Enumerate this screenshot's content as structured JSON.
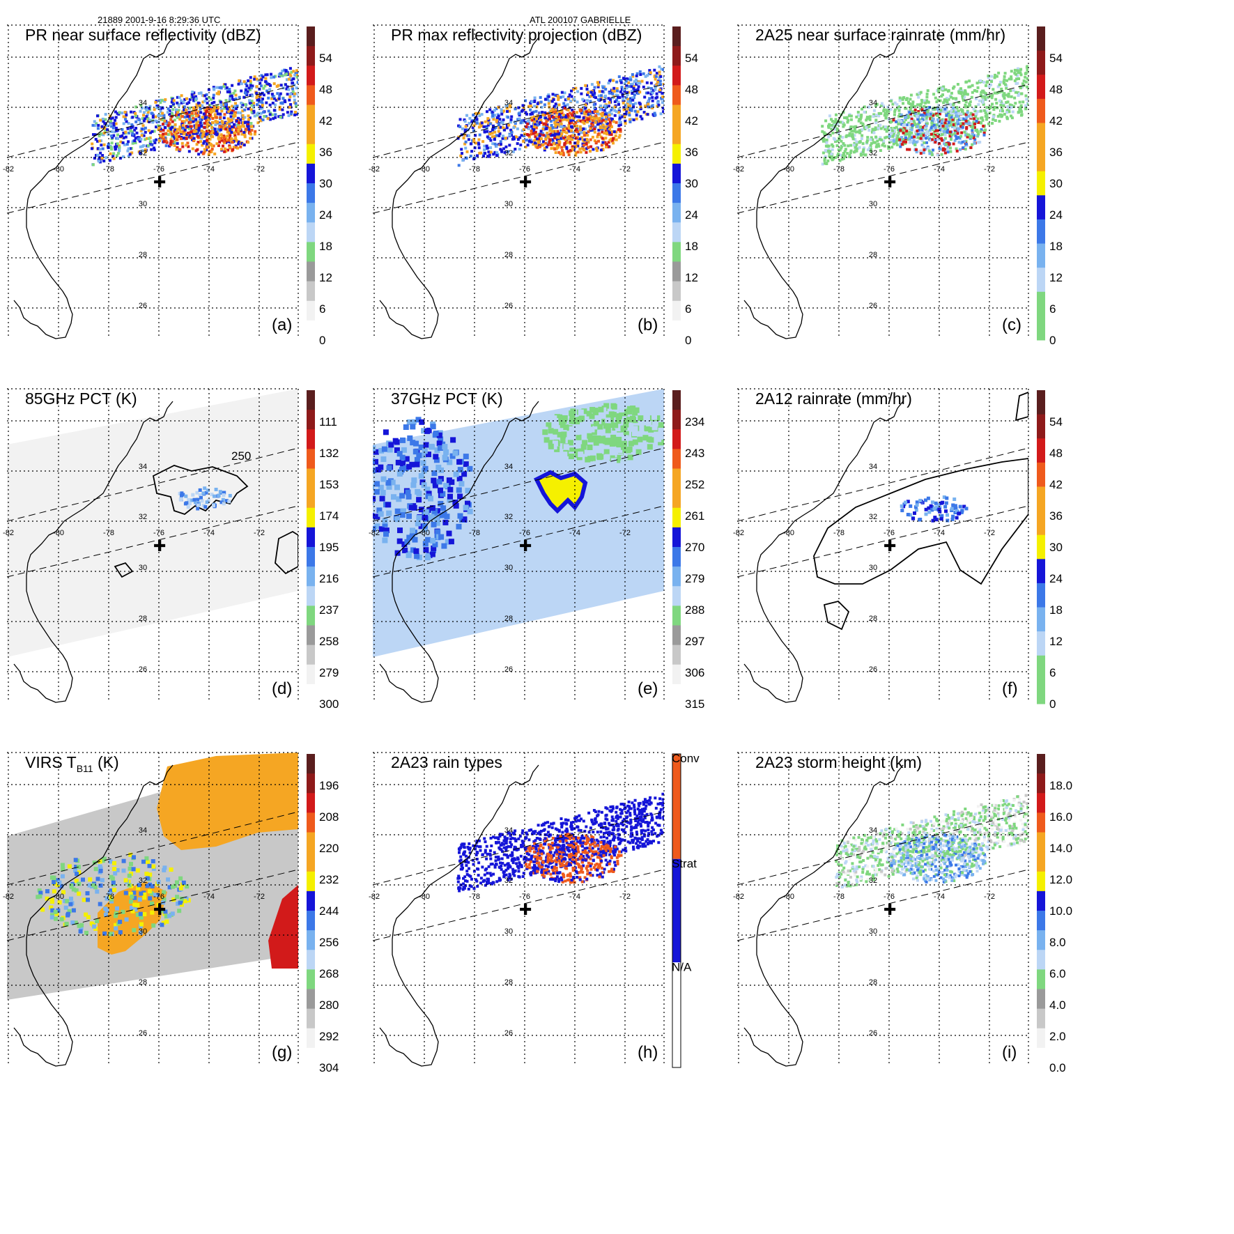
{
  "header": {
    "orbit_time": "21889 2001-9-16 8:29:36 UTC",
    "storm": "ATL 200107 GABRIELLE"
  },
  "lon_labels": [
    "-82",
    "-80",
    "-78",
    "-76",
    "-74",
    "-72"
  ],
  "lat_labels": [
    "34",
    "32",
    "30",
    "28",
    "26"
  ],
  "colors": {
    "gray_light": "#f2f2f2",
    "gray_mid": "#c8c8c8",
    "gray_dark": "#9a9a9a",
    "green": "#7fd77f",
    "blue_pale": "#bcd6f5",
    "blue_light": "#79b2ef",
    "blue_mid": "#3c78e8",
    "blue_dark": "#1515d8",
    "yellow": "#f5f000",
    "orange": "#f5a623",
    "orange_red": "#ef5a1c",
    "red": "#d21a1a",
    "dark_red": "#8e1a1a",
    "maroon": "#5a1e1e",
    "conv": "#ef5a1c",
    "strat": "#1515d8",
    "na": "#ffffff"
  },
  "panels": [
    {
      "id": "a",
      "title": "PR near surface reflectivity (dBZ)",
      "label": "(a)",
      "ticks": [
        "54",
        "48",
        "42",
        "36",
        "30",
        "24",
        "18",
        "12",
        "6",
        "0"
      ]
    },
    {
      "id": "b",
      "title": "PR max reflectivity projection (dBZ)",
      "label": "(b)",
      "ticks": [
        "54",
        "48",
        "42",
        "36",
        "30",
        "24",
        "18",
        "12",
        "6",
        "0"
      ]
    },
    {
      "id": "c",
      "title": "2A25 near surface rainrate (mm/hr)",
      "label": "(c)",
      "ticks": [
        "54",
        "48",
        "42",
        "36",
        "30",
        "24",
        "18",
        "12",
        "6",
        "0"
      ]
    },
    {
      "id": "d",
      "title": "85GHz PCT (K)",
      "label": "(d)",
      "ticks": [
        "111",
        "132",
        "153",
        "174",
        "195",
        "216",
        "237",
        "258",
        "279",
        "300"
      ],
      "contour_label": "250"
    },
    {
      "id": "e",
      "title": "37GHz PCT (K)",
      "label": "(e)",
      "ticks": [
        "234",
        "243",
        "252",
        "261",
        "270",
        "279",
        "288",
        "297",
        "306",
        "315"
      ]
    },
    {
      "id": "f",
      "title": "2A12 rainrate (mm/hr)",
      "label": "(f)",
      "ticks": [
        "54",
        "48",
        "42",
        "36",
        "30",
        "24",
        "18",
        "12",
        "6",
        "0"
      ]
    },
    {
      "id": "g",
      "title": "VIRS T",
      "title_sub": "B11",
      "title_end": " (K)",
      "label": "(g)",
      "ticks": [
        "196",
        "208",
        "220",
        "232",
        "244",
        "256",
        "268",
        "280",
        "292",
        "304"
      ]
    },
    {
      "id": "h",
      "title": "2A23 rain types",
      "label": "(h)",
      "ticks": [
        "Conv",
        "Strat",
        "N/A"
      ]
    },
    {
      "id": "i",
      "title": "2A23 storm height (km)",
      "label": "(i)",
      "ticks": [
        "18.0",
        "16.0",
        "14.0",
        "12.0",
        "10.0",
        "8.0",
        "6.0",
        "4.0",
        "2.0",
        "0.0"
      ]
    }
  ]
}
